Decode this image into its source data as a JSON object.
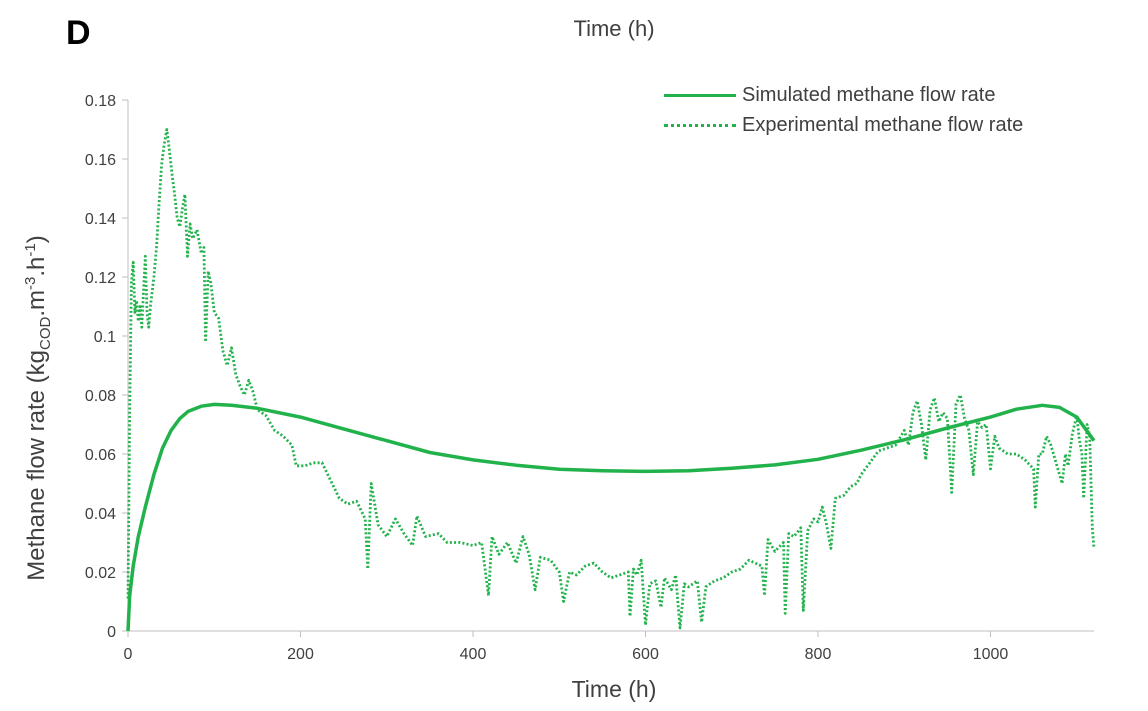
{
  "panel_label": "D",
  "top_title": "Time (h)",
  "chart_data": {
    "type": "line",
    "xlabel": "Time (h)",
    "ylabel_main": "Methane flow rate (kg",
    "ylabel_sub": "COD",
    "ylabel_mid": ".m",
    "ylabel_sup1": "-3",
    "ylabel_mid2": ".h",
    "ylabel_sup2": "-1",
    "ylabel_end": ")",
    "xlim": [
      0,
      1120
    ],
    "ylim": [
      0,
      0.18
    ],
    "x_ticks": [
      0,
      200,
      400,
      600,
      800,
      1000
    ],
    "x_tick_labels": [
      "0",
      "200",
      "400",
      "600",
      "800",
      "1000"
    ],
    "y_ticks": [
      0,
      0.02,
      0.04,
      0.06,
      0.08,
      0.1,
      0.12,
      0.14,
      0.16,
      0.18
    ],
    "y_tick_labels": [
      "0",
      "0.02",
      "0.04",
      "0.06",
      "0.08",
      "0.1",
      "0.12",
      "0.14",
      "0.16",
      "0.18"
    ],
    "grid": false,
    "legend_position": "top-right",
    "color": "#22b24c",
    "series": [
      {
        "name": "Simulated methane flow rate",
        "style": "solid",
        "points": [
          [
            0,
            0
          ],
          [
            2,
            0.012
          ],
          [
            6,
            0.022
          ],
          [
            12,
            0.032
          ],
          [
            20,
            0.042
          ],
          [
            30,
            0.053
          ],
          [
            40,
            0.062
          ],
          [
            50,
            0.068
          ],
          [
            60,
            0.072
          ],
          [
            70,
            0.0745
          ],
          [
            85,
            0.0762
          ],
          [
            100,
            0.0768
          ],
          [
            120,
            0.0765
          ],
          [
            150,
            0.0755
          ],
          [
            200,
            0.0725
          ],
          [
            250,
            0.0685
          ],
          [
            300,
            0.0645
          ],
          [
            350,
            0.0605
          ],
          [
            400,
            0.058
          ],
          [
            450,
            0.0562
          ],
          [
            500,
            0.0548
          ],
          [
            550,
            0.0543
          ],
          [
            600,
            0.0541
          ],
          [
            650,
            0.0543
          ],
          [
            700,
            0.0552
          ],
          [
            750,
            0.0563
          ],
          [
            800,
            0.0582
          ],
          [
            850,
            0.0613
          ],
          [
            900,
            0.0648
          ],
          [
            950,
            0.0688
          ],
          [
            1000,
            0.0725
          ],
          [
            1030,
            0.0752
          ],
          [
            1060,
            0.0765
          ],
          [
            1080,
            0.0758
          ],
          [
            1100,
            0.0725
          ],
          [
            1120,
            0.0645
          ]
        ]
      },
      {
        "name": "Experimental methane flow rate",
        "style": "dotted",
        "points": [
          [
            0,
            0.011
          ],
          [
            2,
            0.075
          ],
          [
            4,
            0.118
          ],
          [
            6,
            0.125
          ],
          [
            8,
            0.108
          ],
          [
            10,
            0.112
          ],
          [
            12,
            0.105
          ],
          [
            14,
            0.11
          ],
          [
            16,
            0.103
          ],
          [
            18,
            0.115
          ],
          [
            20,
            0.127
          ],
          [
            22,
            0.108
          ],
          [
            24,
            0.103
          ],
          [
            26,
            0.11
          ],
          [
            28,
            0.115
          ],
          [
            30,
            0.12
          ],
          [
            33,
            0.13
          ],
          [
            36,
            0.145
          ],
          [
            39,
            0.158
          ],
          [
            42,
            0.165
          ],
          [
            45,
            0.17
          ],
          [
            48,
            0.163
          ],
          [
            51,
            0.155
          ],
          [
            54,
            0.148
          ],
          [
            57,
            0.14
          ],
          [
            60,
            0.137
          ],
          [
            63,
            0.143
          ],
          [
            66,
            0.148
          ],
          [
            69,
            0.127
          ],
          [
            72,
            0.138
          ],
          [
            75,
            0.133
          ],
          [
            80,
            0.136
          ],
          [
            85,
            0.128
          ],
          [
            88,
            0.13
          ],
          [
            90,
            0.098
          ],
          [
            93,
            0.122
          ],
          [
            96,
            0.118
          ],
          [
            100,
            0.108
          ],
          [
            105,
            0.106
          ],
          [
            110,
            0.095
          ],
          [
            115,
            0.09
          ],
          [
            120,
            0.096
          ],
          [
            125,
            0.087
          ],
          [
            130,
            0.083
          ],
          [
            135,
            0.08
          ],
          [
            140,
            0.085
          ],
          [
            145,
            0.081
          ],
          [
            150,
            0.075
          ],
          [
            160,
            0.073
          ],
          [
            170,
            0.068
          ],
          [
            180,
            0.066
          ],
          [
            190,
            0.063
          ],
          [
            195,
            0.056
          ],
          [
            205,
            0.056
          ],
          [
            215,
            0.057
          ],
          [
            225,
            0.057
          ],
          [
            235,
            0.051
          ],
          [
            240,
            0.048
          ],
          [
            245,
            0.045
          ],
          [
            255,
            0.043
          ],
          [
            265,
            0.044
          ],
          [
            275,
            0.038
          ],
          [
            278,
            0.021
          ],
          [
            282,
            0.05
          ],
          [
            290,
            0.036
          ],
          [
            300,
            0.032
          ],
          [
            310,
            0.038
          ],
          [
            320,
            0.033
          ],
          [
            330,
            0.029
          ],
          [
            335,
            0.039
          ],
          [
            345,
            0.032
          ],
          [
            360,
            0.033
          ],
          [
            370,
            0.03
          ],
          [
            385,
            0.03
          ],
          [
            400,
            0.029
          ],
          [
            410,
            0.03
          ],
          [
            418,
            0.012
          ],
          [
            422,
            0.032
          ],
          [
            430,
            0.026
          ],
          [
            440,
            0.03
          ],
          [
            450,
            0.023
          ],
          [
            458,
            0.032
          ],
          [
            465,
            0.026
          ],
          [
            472,
            0.014
          ],
          [
            478,
            0.025
          ],
          [
            490,
            0.024
          ],
          [
            500,
            0.02
          ],
          [
            505,
            0.01
          ],
          [
            512,
            0.02
          ],
          [
            520,
            0.019
          ],
          [
            530,
            0.022
          ],
          [
            540,
            0.023
          ],
          [
            550,
            0.02
          ],
          [
            560,
            0.018
          ],
          [
            570,
            0.019
          ],
          [
            580,
            0.02
          ],
          [
            582,
            0.005
          ],
          [
            586,
            0.021
          ],
          [
            590,
            0.019
          ],
          [
            595,
            0.024
          ],
          [
            600,
            0.002
          ],
          [
            605,
            0.016
          ],
          [
            612,
            0.017
          ],
          [
            618,
            0.008
          ],
          [
            622,
            0.018
          ],
          [
            630,
            0.014
          ],
          [
            635,
            0.019
          ],
          [
            640,
            0.001
          ],
          [
            645,
            0.016
          ],
          [
            650,
            0.015
          ],
          [
            660,
            0.017
          ],
          [
            665,
            0.003
          ],
          [
            670,
            0.015
          ],
          [
            680,
            0.017
          ],
          [
            690,
            0.018
          ],
          [
            700,
            0.02
          ],
          [
            710,
            0.021
          ],
          [
            720,
            0.024
          ],
          [
            735,
            0.022
          ],
          [
            738,
            0.012
          ],
          [
            742,
            0.031
          ],
          [
            750,
            0.027
          ],
          [
            760,
            0.03
          ],
          [
            762,
            0.006
          ],
          [
            766,
            0.033
          ],
          [
            772,
            0.032
          ],
          [
            780,
            0.035
          ],
          [
            783,
            0.007
          ],
          [
            788,
            0.034
          ],
          [
            795,
            0.038
          ],
          [
            800,
            0.037
          ],
          [
            805,
            0.042
          ],
          [
            810,
            0.036
          ],
          [
            815,
            0.028
          ],
          [
            820,
            0.045
          ],
          [
            830,
            0.046
          ],
          [
            838,
            0.049
          ],
          [
            845,
            0.05
          ],
          [
            850,
            0.053
          ],
          [
            860,
            0.057
          ],
          [
            870,
            0.061
          ],
          [
            880,
            0.062
          ],
          [
            890,
            0.063
          ],
          [
            900,
            0.068
          ],
          [
            905,
            0.063
          ],
          [
            910,
            0.074
          ],
          [
            915,
            0.078
          ],
          [
            920,
            0.07
          ],
          [
            925,
            0.058
          ],
          [
            930,
            0.075
          ],
          [
            935,
            0.079
          ],
          [
            940,
            0.071
          ],
          [
            945,
            0.074
          ],
          [
            950,
            0.072
          ],
          [
            955,
            0.047
          ],
          [
            960,
            0.077
          ],
          [
            965,
            0.08
          ],
          [
            970,
            0.072
          ],
          [
            975,
            0.068
          ],
          [
            980,
            0.053
          ],
          [
            985,
            0.071
          ],
          [
            990,
            0.069
          ],
          [
            995,
            0.07
          ],
          [
            1000,
            0.055
          ],
          [
            1005,
            0.066
          ],
          [
            1010,
            0.062
          ],
          [
            1020,
            0.06
          ],
          [
            1030,
            0.06
          ],
          [
            1040,
            0.058
          ],
          [
            1050,
            0.055
          ],
          [
            1052,
            0.042
          ],
          [
            1056,
            0.06
          ],
          [
            1060,
            0.06
          ],
          [
            1065,
            0.066
          ],
          [
            1070,
            0.063
          ],
          [
            1075,
            0.058
          ],
          [
            1080,
            0.053
          ],
          [
            1083,
            0.05
          ],
          [
            1087,
            0.06
          ],
          [
            1090,
            0.056
          ],
          [
            1095,
            0.067
          ],
          [
            1100,
            0.073
          ],
          [
            1103,
            0.065
          ],
          [
            1106,
            0.06
          ],
          [
            1108,
            0.045
          ],
          [
            1112,
            0.07
          ],
          [
            1115,
            0.066
          ],
          [
            1118,
            0.035
          ],
          [
            1120,
            0.028
          ]
        ]
      }
    ]
  }
}
